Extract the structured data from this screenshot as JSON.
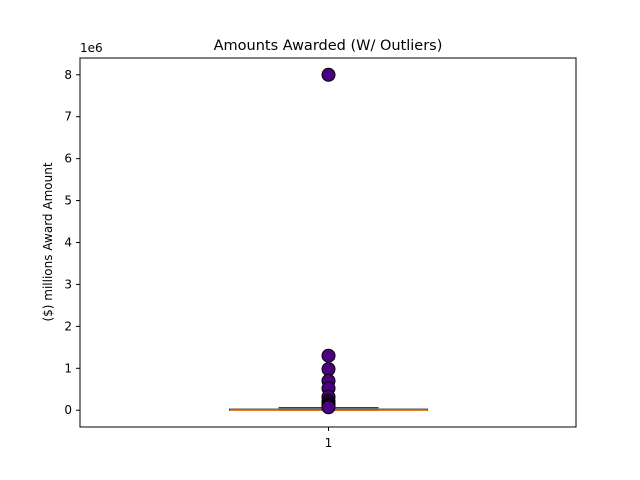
{
  "chart_data": {
    "type": "boxplot",
    "title": "Amounts Awarded (W/ Outliers)",
    "xlabel": "",
    "ylabel": "($) millions Award Amount",
    "y_offset_text": "1e6",
    "ylim": [
      -400000,
      8400000
    ],
    "y_ticks": [
      0,
      1000000,
      2000000,
      3000000,
      4000000,
      5000000,
      6000000,
      7000000,
      8000000
    ],
    "y_tick_labels": [
      "0",
      "1",
      "2",
      "3",
      "4",
      "5",
      "6",
      "7",
      "8"
    ],
    "categories": [
      "1"
    ],
    "box": {
      "q1": 0,
      "median": 5000,
      "q3": 25000,
      "whisker_low": 0,
      "whisker_high": 60000
    },
    "outliers": [
      8000000,
      1300000,
      980000,
      700000,
      520000,
      320000,
      220000,
      170000,
      130000,
      100000,
      70000
    ],
    "colors": {
      "outlier_fill": "#4B0082",
      "outlier_edge": "#000000",
      "median": "#FF7F0E",
      "box": "#000000"
    },
    "grid": false,
    "legend": "none"
  }
}
